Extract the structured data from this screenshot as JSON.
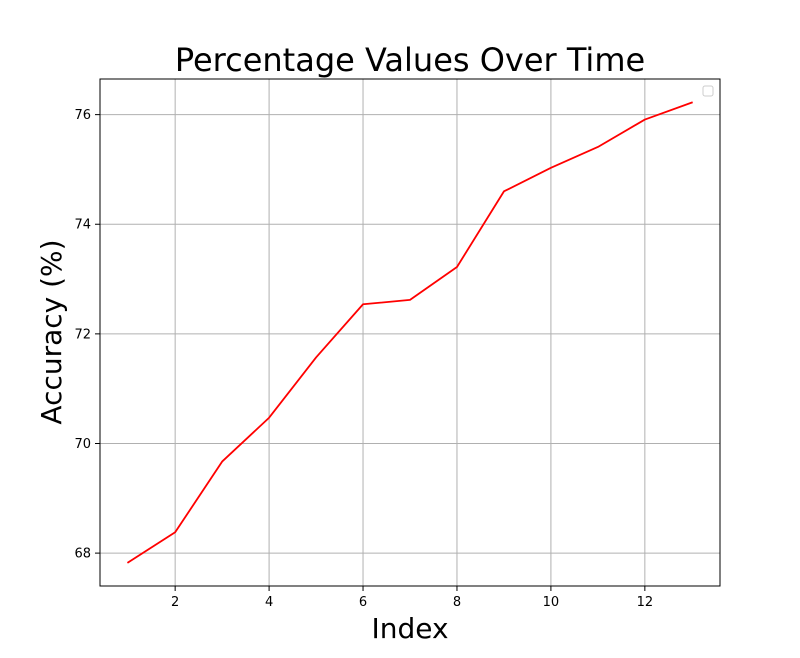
{
  "chart_data": {
    "type": "line",
    "title": "Percentage Values Over Time",
    "xlabel": "Index",
    "ylabel": "Accuracy (%)",
    "xlim": [
      0.4,
      13.6
    ],
    "ylim": [
      67.4,
      76.65
    ],
    "xticks": [
      2,
      4,
      6,
      8,
      10,
      12
    ],
    "yticks": [
      68,
      70,
      72,
      74,
      76
    ],
    "grid": true,
    "legend": {
      "placement": "top-right",
      "entries": []
    },
    "series": [
      {
        "color": "#ff0000",
        "x": [
          1,
          2,
          3,
          4,
          5,
          6,
          7,
          8,
          9,
          10,
          11,
          12,
          13
        ],
        "y": [
          67.83,
          68.38,
          69.67,
          70.47,
          71.57,
          72.54,
          72.62,
          73.22,
          74.6,
          75.03,
          75.41,
          75.91,
          76.22
        ]
      }
    ]
  }
}
